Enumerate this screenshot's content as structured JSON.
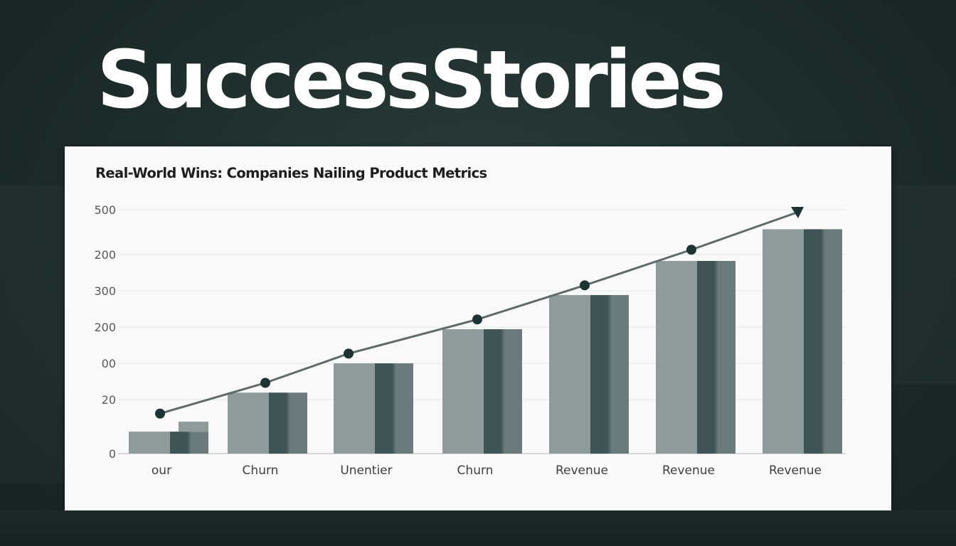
{
  "headline": "SuccessStories",
  "chart_data": {
    "type": "bar",
    "title": "Real-World Wins: Companies Nailing Product Metrics",
    "xlabel": "",
    "ylabel": "",
    "y_tick_labels": [
      "500",
      "200",
      "300",
      "200",
      "00",
      "20",
      "0"
    ],
    "categories": [
      "our",
      "Churn",
      "Unentier",
      "Churn",
      "Revenue",
      "Revenue",
      "Revenue"
    ],
    "series": [
      {
        "name": "bars",
        "values": [
          45,
          125,
          185,
          255,
          325,
          395,
          460
        ]
      },
      {
        "name": "trend line",
        "type": "line",
        "values": [
          82,
          145,
          205,
          275,
          345,
          418,
          500
        ]
      }
    ],
    "ylim": [
      0,
      500
    ],
    "grid": true,
    "legend": null,
    "annotations": [
      "upward trend arrow"
    ]
  },
  "colors": {
    "background": "#1d2d2c",
    "card": "#f8f9f8",
    "bar_light": "#8d9b9c",
    "bar_dark": "#3f5457",
    "bar_mid": "#6b7a7c",
    "line": "#5f6a6a",
    "marker": "#1c3434"
  }
}
